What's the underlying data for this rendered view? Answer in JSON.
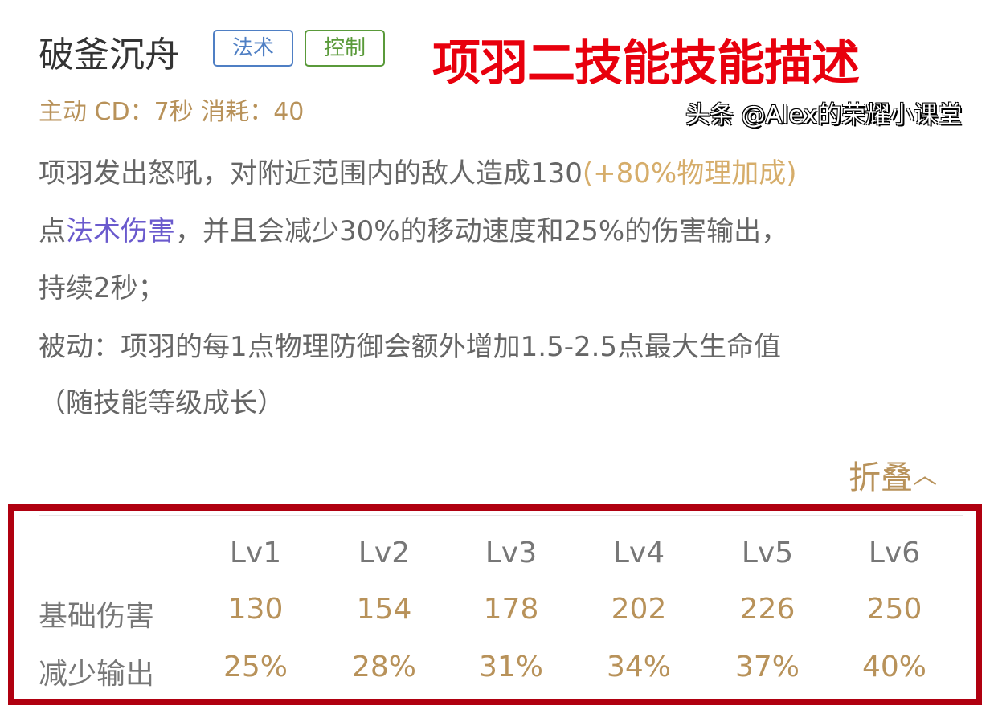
{
  "skill": {
    "name": "破釜沉舟",
    "tags": [
      "法术",
      "控制"
    ],
    "meta": "主动 CD：7秒 消耗：40"
  },
  "banner": "项羽二技能技能描述",
  "description": {
    "l1a": "项羽发出怒吼，对附近范围内的敌人造成130",
    "l1b": "(+80%物理加成)",
    "l2a": "点",
    "l2b": "法术伤害",
    "l2c": "，并且会减少30%的移动速度和25%的伤害输出，",
    "l3": "持续2秒；",
    "l4": "被动：项羽的每1点物理防御会额外增加1.5-2.5点最大生命值",
    "l5": "（随技能等级成长）"
  },
  "fold": {
    "label": "折叠",
    "icon": "chevron-up-icon"
  },
  "table": {
    "levels": [
      "Lv1",
      "Lv2",
      "Lv3",
      "Lv4",
      "Lv5",
      "Lv6"
    ],
    "rows": [
      {
        "label": "基础伤害",
        "values": [
          "130",
          "154",
          "178",
          "202",
          "226",
          "250"
        ]
      },
      {
        "label": "减少输出",
        "values": [
          "25%",
          "28%",
          "31%",
          "34%",
          "37%",
          "40%"
        ]
      }
    ]
  },
  "watermark": "头条 @Alex的荣耀小课堂",
  "colors": {
    "accent": "#b8925a",
    "highlight_box": "#b00010",
    "banner": "#e8000d"
  }
}
